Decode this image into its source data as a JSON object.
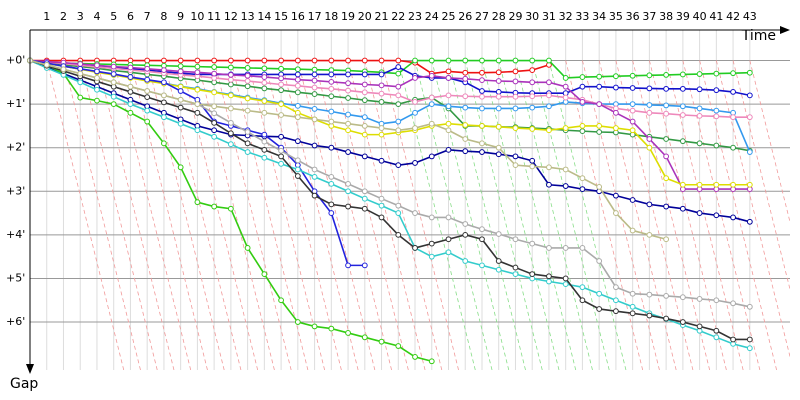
{
  "chart_data": {
    "type": "line",
    "x_label": "Time",
    "y_label": "Gap",
    "x": [
      0,
      1,
      2,
      3,
      4,
      5,
      6,
      7,
      8,
      9,
      10,
      11,
      12,
      13,
      14,
      15,
      16,
      17,
      18,
      19,
      20,
      21,
      22,
      23,
      24,
      25,
      26,
      27,
      28,
      29,
      30,
      31,
      32,
      33,
      34,
      35,
      36,
      37,
      38,
      39,
      40,
      41,
      42,
      43
    ],
    "xlim": [
      0,
      45.4
    ],
    "xticks": [
      1,
      2,
      3,
      4,
      5,
      6,
      7,
      8,
      9,
      10,
      11,
      12,
      13,
      14,
      15,
      16,
      17,
      18,
      19,
      20,
      21,
      22,
      23,
      24,
      25,
      26,
      27,
      28,
      29,
      30,
      31,
      32,
      33,
      34,
      35,
      36,
      37,
      38,
      39,
      40,
      41,
      42,
      43
    ],
    "ylim": [
      -0.7,
      7.1
    ],
    "yticks": [
      {
        "value": 0,
        "label": "+0'"
      },
      {
        "value": 1,
        "label": "+1'"
      },
      {
        "value": 2,
        "label": "+2'"
      },
      {
        "value": 3,
        "label": "+3'"
      },
      {
        "value": 4,
        "label": "+4'"
      },
      {
        "value": 5,
        "label": "+5'"
      },
      {
        "value": 6,
        "label": "+6'"
      }
    ],
    "y_inverted": true,
    "grid": true,
    "series": [
      {
        "color": "#ee1111",
        "values": [
          0,
          0,
          0,
          0,
          0,
          0,
          0,
          0,
          0,
          0,
          0,
          0,
          0,
          0,
          0,
          0,
          0,
          0,
          0,
          0,
          0,
          0,
          0,
          0.05,
          0.3,
          0.25,
          0.28,
          0.28,
          0.27,
          0.25,
          0.22,
          0.1,
          null,
          null,
          null,
          null,
          null,
          null,
          null,
          null,
          null,
          null,
          null,
          null
        ]
      },
      {
        "color": "#22cc22",
        "values": [
          0,
          0.05,
          0.06,
          0.07,
          0.08,
          0.09,
          0.1,
          0.11,
          0.12,
          0.13,
          0.14,
          0.15,
          0.16,
          0.17,
          0.18,
          0.19,
          0.2,
          0.21,
          0.22,
          0.23,
          0.25,
          0.27,
          0.3,
          0,
          0,
          0,
          0,
          0,
          0,
          0,
          0,
          0,
          0.4,
          0.38,
          0.37,
          0.36,
          0.35,
          0.34,
          0.33,
          0.32,
          0.31,
          0.3,
          0.29,
          0.28
        ]
      },
      {
        "color": "#339944",
        "values": [
          0,
          0.05,
          0.1,
          0.14,
          0.18,
          0.23,
          0.27,
          0.32,
          0.36,
          0.41,
          0.45,
          0.5,
          0.55,
          0.59,
          0.64,
          0.68,
          0.73,
          0.77,
          0.82,
          0.86,
          0.91,
          0.95,
          1.0,
          0.9,
          0.85,
          1.1,
          1.5,
          1.5,
          1.52,
          1.53,
          1.55,
          1.57,
          1.6,
          1.62,
          1.64,
          1.65,
          1.7,
          1.75,
          1.8,
          1.85,
          1.9,
          1.95,
          2.0,
          2.07
        ]
      },
      {
        "color": "#1111cc",
        "values": [
          0,
          0.03,
          0.06,
          0.1,
          0.13,
          0.16,
          0.19,
          0.22,
          0.26,
          0.29,
          0.32,
          0.32,
          0.32,
          0.32,
          0.32,
          0.32,
          0.32,
          0.32,
          0.32,
          0.32,
          0.32,
          0.32,
          0.15,
          0.35,
          0.4,
          0.4,
          0.5,
          0.7,
          0.72,
          0.74,
          0.75,
          0.75,
          0.75,
          0.6,
          0.6,
          0.62,
          0.63,
          0.64,
          0.65,
          0.65,
          0.66,
          0.68,
          0.72,
          0.8
        ]
      },
      {
        "color": "#3399ee",
        "values": [
          0,
          0.07,
          0.13,
          0.2,
          0.26,
          0.33,
          0.39,
          0.46,
          0.52,
          0.59,
          0.65,
          0.72,
          0.78,
          0.85,
          0.91,
          0.98,
          1.04,
          1.11,
          1.17,
          1.24,
          1.3,
          1.45,
          1.4,
          1.2,
          1.0,
          1.05,
          1.08,
          1.1,
          1.1,
          1.1,
          1.08,
          1.05,
          0.95,
          0.98,
          1.0,
          1.0,
          1.0,
          1.02,
          1.03,
          1.05,
          1.1,
          1.15,
          1.2,
          2.1
        ]
      },
      {
        "color": "#ee88bb",
        "values": [
          0,
          0.04,
          0.07,
          0.11,
          0.15,
          0.18,
          0.22,
          0.25,
          0.29,
          0.33,
          0.36,
          0.4,
          0.44,
          0.47,
          0.51,
          0.55,
          0.58,
          0.62,
          0.65,
          0.69,
          0.73,
          0.76,
          0.8,
          0.95,
          0.85,
          0.8,
          0.82,
          0.83,
          0.83,
          0.83,
          0.82,
          0.8,
          0.85,
          0.9,
          1.0,
          1.1,
          1.15,
          1.2,
          1.22,
          1.25,
          1.27,
          1.28,
          1.3,
          1.3
        ]
      },
      {
        "color": "#aa33bb",
        "values": [
          0,
          0.03,
          0.05,
          0.08,
          0.11,
          0.14,
          0.16,
          0.19,
          0.22,
          0.25,
          0.27,
          0.3,
          0.33,
          0.35,
          0.38,
          0.41,
          0.44,
          0.46,
          0.49,
          0.52,
          0.55,
          0.57,
          0.6,
          0.4,
          0.35,
          0.4,
          0.42,
          0.45,
          0.47,
          0.48,
          0.5,
          0.5,
          0.6,
          0.95,
          1.0,
          1.2,
          1.4,
          1.8,
          2.2,
          2.95,
          2.95,
          2.95,
          2.95,
          2.95
        ]
      },
      {
        "color": "#dddd00",
        "values": [
          0,
          0.07,
          0.13,
          0.2,
          0.27,
          0.33,
          0.4,
          0.47,
          0.53,
          0.6,
          0.67,
          0.73,
          0.8,
          0.87,
          0.93,
          1.0,
          1.2,
          1.35,
          1.5,
          1.6,
          1.7,
          1.7,
          1.65,
          1.6,
          1.5,
          1.45,
          1.48,
          1.5,
          1.52,
          1.55,
          1.57,
          1.6,
          1.55,
          1.5,
          1.5,
          1.55,
          1.6,
          2.0,
          2.7,
          2.85,
          2.85,
          2.85,
          2.85,
          2.85
        ]
      },
      {
        "color": "#000099",
        "values": [
          0,
          0.15,
          0.3,
          0.45,
          0.6,
          0.75,
          0.9,
          1.05,
          1.2,
          1.35,
          1.5,
          1.6,
          1.7,
          1.72,
          1.74,
          1.75,
          1.85,
          1.95,
          2.0,
          2.1,
          2.2,
          2.3,
          2.4,
          2.35,
          2.2,
          2.05,
          2.08,
          2.1,
          2.15,
          2.2,
          2.3,
          2.85,
          2.88,
          2.95,
          3.0,
          3.1,
          3.2,
          3.3,
          3.35,
          3.4,
          3.5,
          3.55,
          3.6,
          3.7
        ]
      },
      {
        "color": "#2222dd",
        "values": [
          0,
          0.06,
          0.13,
          0.19,
          0.25,
          0.31,
          0.38,
          0.44,
          0.5,
          0.7,
          0.9,
          1.4,
          1.5,
          1.6,
          1.7,
          2.0,
          2.4,
          3.0,
          3.5,
          4.7,
          4.7,
          null,
          null,
          null,
          null,
          null,
          null,
          null,
          null,
          null,
          null,
          null,
          null,
          null,
          null,
          null,
          null,
          null,
          null,
          null,
          null,
          null,
          null,
          null
        ]
      },
      {
        "color": "#33cc11",
        "values": [
          0,
          0.1,
          0.3,
          0.85,
          0.92,
          1.0,
          1.2,
          1.4,
          1.9,
          2.45,
          3.25,
          3.35,
          3.4,
          4.3,
          4.9,
          5.5,
          6.0,
          6.1,
          6.15,
          6.25,
          6.35,
          6.45,
          6.55,
          6.8,
          6.9,
          null,
          null,
          null,
          null,
          null,
          null,
          null,
          null,
          null,
          null,
          null,
          null,
          null,
          null,
          null,
          null,
          null,
          null,
          null
        ]
      },
      {
        "color": "#33cccc",
        "values": [
          0,
          0.17,
          0.33,
          0.5,
          0.67,
          0.83,
          1.0,
          1.15,
          1.3,
          1.45,
          1.6,
          1.75,
          1.92,
          2.1,
          2.23,
          2.37,
          2.5,
          2.67,
          2.83,
          3.0,
          3.17,
          3.33,
          3.5,
          4.3,
          4.5,
          4.4,
          4.6,
          4.7,
          4.8,
          4.9,
          5.0,
          5.07,
          5.13,
          5.2,
          5.35,
          5.5,
          5.65,
          5.8,
          5.93,
          6.07,
          6.2,
          6.35,
          6.5,
          6.6
        ]
      },
      {
        "color": "#333333",
        "values": [
          0,
          0.12,
          0.24,
          0.36,
          0.48,
          0.6,
          0.72,
          0.84,
          0.96,
          1.08,
          1.2,
          1.43,
          1.67,
          1.9,
          2.05,
          2.2,
          2.65,
          3.1,
          3.3,
          3.35,
          3.4,
          3.6,
          4.0,
          4.3,
          4.2,
          4.1,
          4.0,
          4.1,
          4.6,
          4.75,
          4.9,
          4.95,
          5.0,
          5.5,
          5.7,
          5.75,
          5.8,
          5.85,
          5.92,
          6.0,
          6.1,
          6.2,
          6.4,
          6.4
        ]
      },
      {
        "color": "#aaaaaa",
        "values": [
          0,
          0.1,
          0.2,
          0.3,
          0.4,
          0.5,
          0.6,
          0.7,
          0.8,
          0.9,
          1.0,
          1.21,
          1.43,
          1.64,
          1.86,
          2.07,
          2.29,
          2.5,
          2.67,
          2.83,
          3.0,
          3.17,
          3.33,
          3.5,
          3.6,
          3.6,
          3.75,
          3.87,
          3.98,
          4.1,
          4.2,
          4.3,
          4.3,
          4.3,
          4.6,
          5.2,
          5.35,
          5.37,
          5.4,
          5.43,
          5.47,
          5.5,
          5.57,
          5.65
        ]
      },
      {
        "color": "#bbbb88",
        "values": [
          0,
          0.1,
          0.2,
          0.3,
          0.4,
          0.5,
          0.6,
          0.7,
          0.8,
          0.9,
          1.0,
          1.05,
          1.1,
          1.15,
          1.2,
          1.25,
          1.3,
          1.35,
          1.4,
          1.45,
          1.5,
          1.55,
          1.6,
          1.55,
          1.45,
          1.6,
          1.8,
          1.9,
          2.0,
          2.4,
          2.43,
          2.45,
          2.5,
          2.7,
          2.9,
          3.5,
          3.9,
          4.0,
          4.1,
          null,
          null,
          null,
          null,
          null
        ]
      }
    ]
  }
}
